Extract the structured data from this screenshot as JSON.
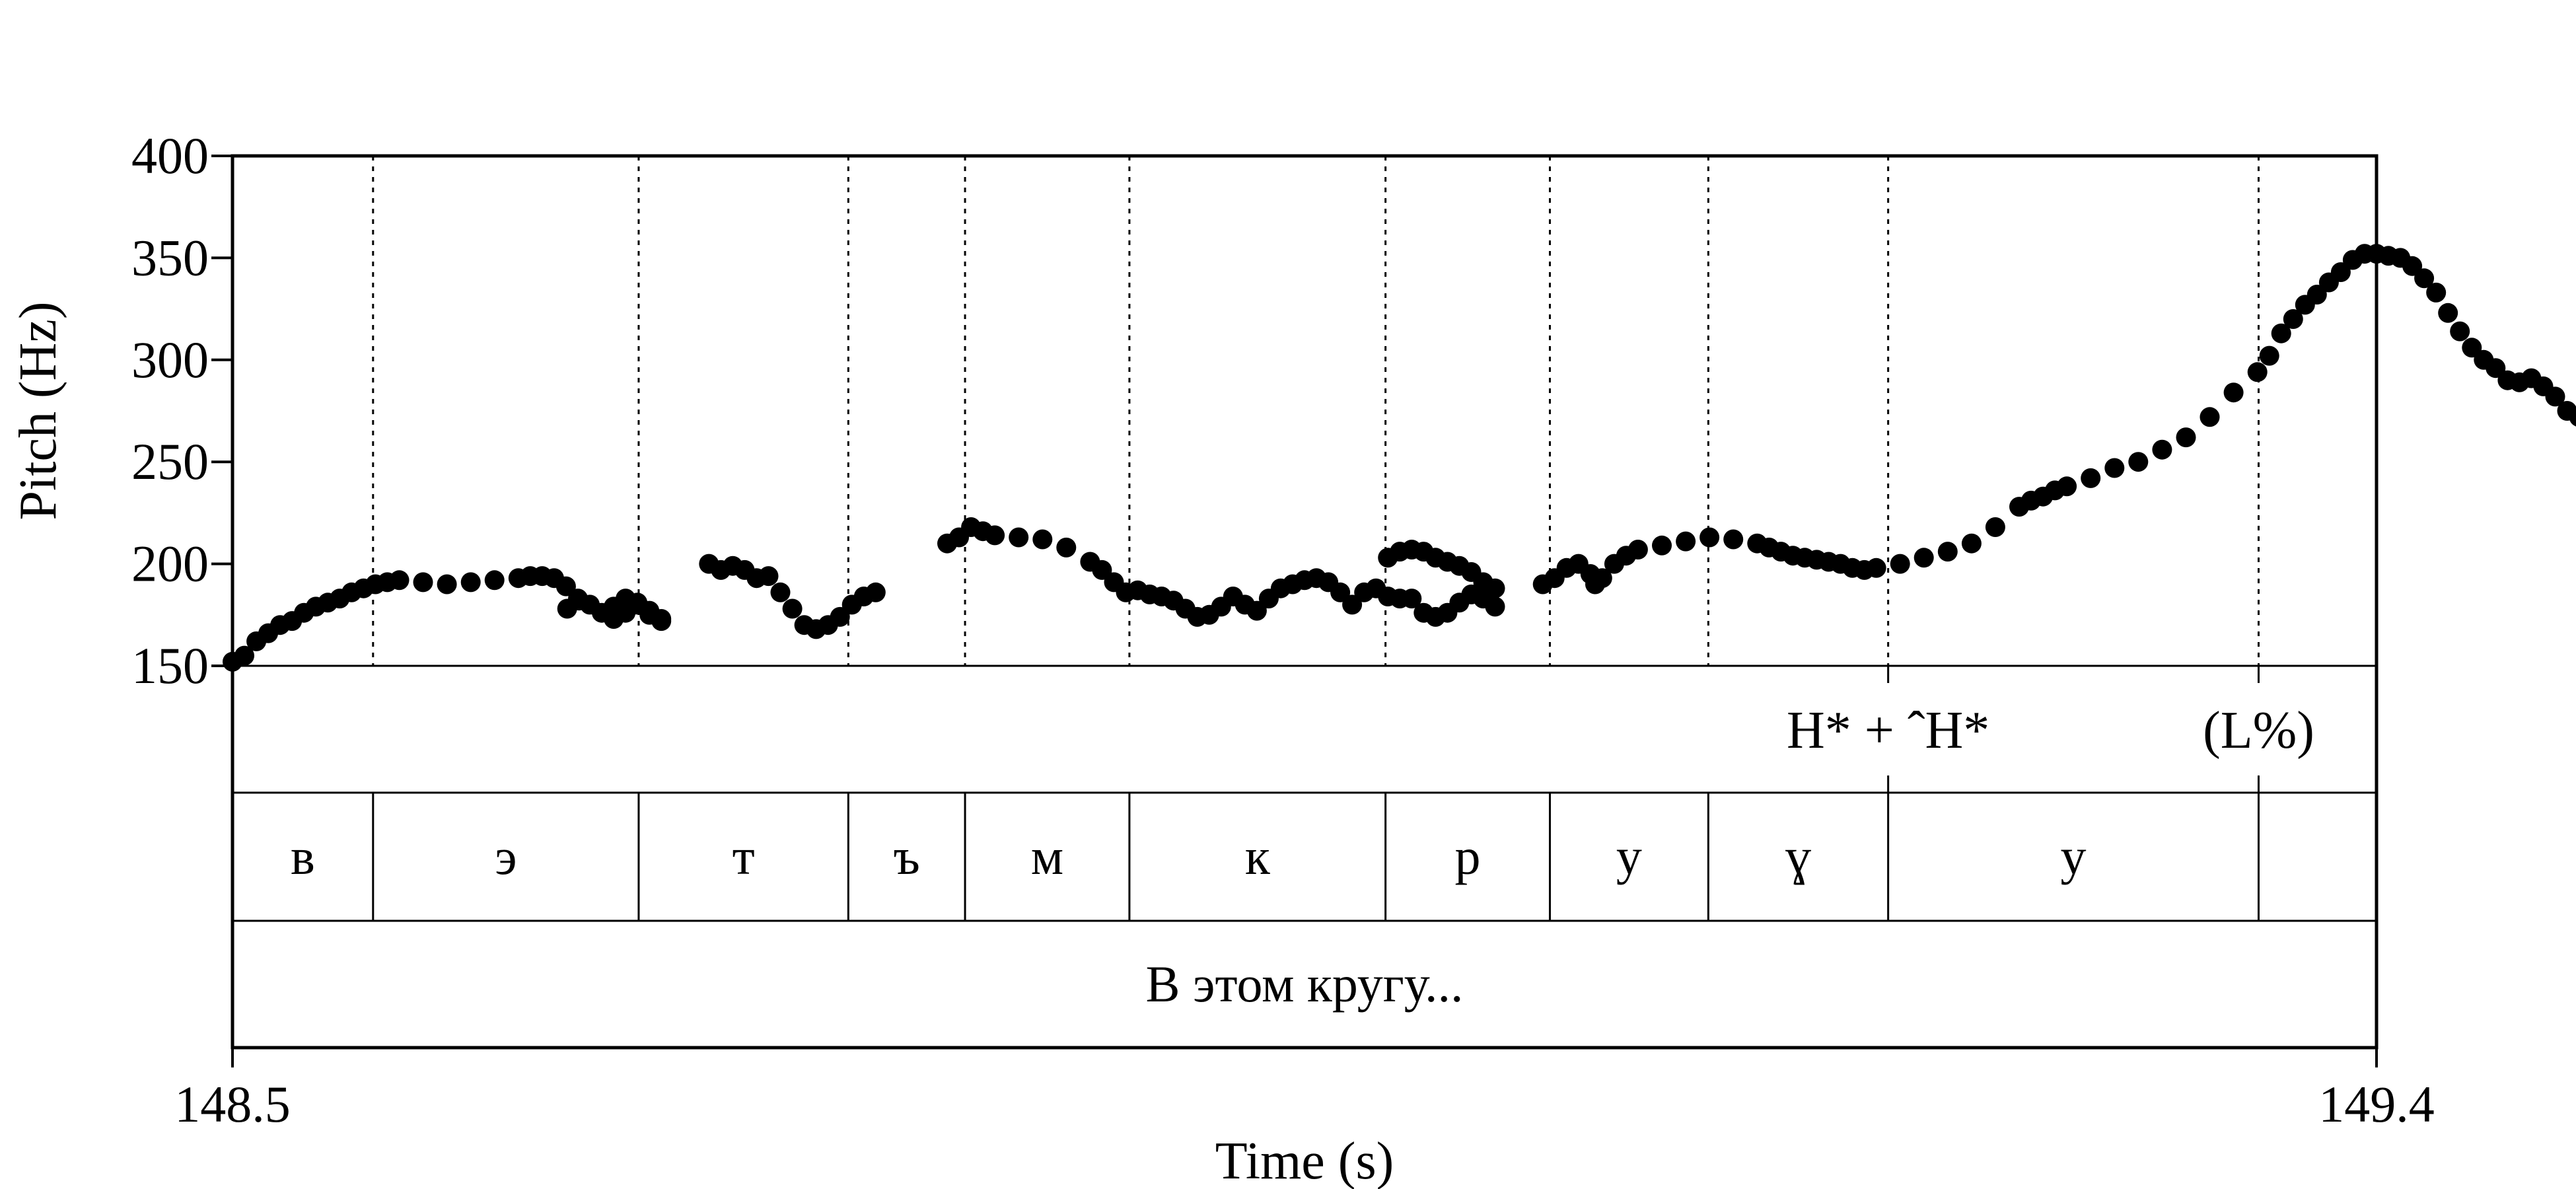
{
  "chart_data": {
    "type": "scatter",
    "xlabel": "Time (s)",
    "ylabel": "Pitch (Hz)",
    "xlim": [
      148.5,
      149.4
    ],
    "ylim": [
      150,
      400
    ],
    "x_tick_labels": [
      "148.5",
      "149.4"
    ],
    "y_ticks": [
      150,
      200,
      250,
      300,
      350,
      400
    ],
    "y_tick_labels": [
      "150",
      "200",
      "250",
      "300",
      "350",
      "400"
    ],
    "grid": false,
    "boundaries": [
      148.559,
      148.6705,
      148.7585,
      148.8075,
      148.8765,
      148.984,
      149.053,
      149.1195,
      149.195,
      149.3505
    ],
    "tones": [
      {
        "label": "H* + ˆH*",
        "x": 149.195
      },
      {
        "label": "(L%)",
        "x": 149.3505
      }
    ],
    "segments": [
      "в",
      "э",
      "т",
      "ъ",
      "м",
      "к",
      "р",
      "у",
      "ɣ",
      "у"
    ],
    "utterance": "В этом кругу...",
    "pitch_runs": [
      [
        [
          148.5,
          152
        ],
        [
          148.505,
          155
        ],
        [
          148.51,
          162
        ],
        [
          148.515,
          166
        ],
        [
          148.52,
          170
        ],
        [
          148.525,
          172
        ],
        [
          148.53,
          176
        ],
        [
          148.535,
          179
        ],
        [
          148.54,
          181
        ],
        [
          148.545,
          183
        ],
        [
          148.55,
          186
        ],
        [
          148.555,
          188
        ],
        [
          148.56,
          190
        ],
        [
          148.565,
          191
        ],
        [
          148.57,
          192
        ],
        [
          148.58,
          191
        ],
        [
          148.59,
          190
        ],
        [
          148.6,
          191
        ],
        [
          148.61,
          192
        ],
        [
          148.62,
          193
        ],
        [
          148.625,
          194
        ],
        [
          148.63,
          194
        ],
        [
          148.635,
          193
        ],
        [
          148.64,
          189
        ],
        [
          148.645,
          183
        ],
        [
          148.65,
          180
        ],
        [
          148.655,
          176
        ],
        [
          148.66,
          173
        ],
        [
          148.665,
          176
        ],
        [
          148.67,
          181
        ],
        [
          148.675,
          177
        ],
        [
          148.68,
          173
        ]
      ],
      [
        [
          148.66,
          179
        ],
        [
          148.665,
          183
        ],
        [
          148.67,
          180
        ],
        [
          148.675,
          175
        ],
        [
          148.68,
          172
        ]
      ],
      [
        [
          148.6405,
          178
        ],
        [
          148.6455,
          182
        ]
      ],
      [
        [
          148.71,
          199
        ],
        [
          148.715,
          197
        ],
        [
          148.72,
          193
        ],
        [
          148.725,
          194
        ],
        [
          148.73,
          186
        ],
        [
          148.735,
          178
        ],
        [
          148.74,
          170
        ],
        [
          148.745,
          168
        ],
        [
          148.75,
          170
        ],
        [
          148.755,
          174
        ],
        [
          148.76,
          180
        ],
        [
          148.765,
          184
        ],
        [
          148.77,
          186
        ]
      ],
      [
        [
          148.7,
          200
        ],
        [
          148.705,
          197
        ]
      ],
      [
        [
          148.8,
          210
        ],
        [
          148.805,
          213
        ],
        [
          148.81,
          218
        ],
        [
          148.815,
          216
        ],
        [
          148.82,
          214
        ],
        [
          148.83,
          213
        ],
        [
          148.84,
          212
        ],
        [
          148.85,
          208
        ],
        [
          148.86,
          201
        ],
        [
          148.865,
          197
        ],
        [
          148.87,
          191
        ],
        [
          148.875,
          186
        ],
        [
          148.88,
          187
        ],
        [
          148.885,
          185
        ],
        [
          148.89,
          184
        ],
        [
          148.895,
          182
        ],
        [
          148.9,
          178
        ],
        [
          148.905,
          174
        ],
        [
          148.91,
          175
        ],
        [
          148.915,
          179
        ],
        [
          148.92,
          184
        ],
        [
          148.925,
          180
        ],
        [
          148.93,
          177
        ],
        [
          148.935,
          183
        ],
        [
          148.94,
          188
        ],
        [
          148.945,
          190
        ],
        [
          148.95,
          192
        ],
        [
          148.955,
          193
        ],
        [
          148.96,
          191
        ],
        [
          148.965,
          186
        ],
        [
          148.97,
          180
        ],
        [
          148.975,
          186
        ],
        [
          148.98,
          188
        ],
        [
          148.985,
          184
        ],
        [
          148.99,
          183
        ],
        [
          148.995,
          183
        ],
        [
          149.0,
          176
        ],
        [
          149.005,
          174
        ],
        [
          149.01,
          176
        ],
        [
          149.015,
          181
        ],
        [
          149.02,
          185
        ],
        [
          149.025,
          183
        ],
        [
          149.03,
          179
        ]
      ],
      [
        [
          148.985,
          203
        ],
        [
          148.99,
          206
        ],
        [
          148.995,
          207
        ],
        [
          149.0,
          206
        ],
        [
          149.005,
          203
        ],
        [
          149.01,
          201
        ],
        [
          149.015,
          199
        ],
        [
          149.02,
          196
        ],
        [
          149.025,
          191
        ],
        [
          149.03,
          188
        ]
      ],
      [
        [
          149.05,
          190
        ],
        [
          149.055,
          193
        ],
        [
          149.06,
          198
        ],
        [
          149.065,
          200
        ],
        [
          149.07,
          195
        ],
        [
          149.072,
          190
        ],
        [
          149.075,
          193
        ],
        [
          149.08,
          200
        ],
        [
          149.085,
          204
        ],
        [
          149.09,
          207
        ],
        [
          149.1,
          209
        ],
        [
          149.11,
          211
        ],
        [
          149.12,
          213
        ],
        [
          149.13,
          212
        ],
        [
          149.14,
          210
        ],
        [
          149.145,
          208
        ],
        [
          149.15,
          206
        ],
        [
          149.155,
          204
        ],
        [
          149.16,
          203
        ],
        [
          149.165,
          202
        ],
        [
          149.17,
          201
        ],
        [
          149.175,
          200
        ],
        [
          149.18,
          198
        ],
        [
          149.185,
          197
        ],
        [
          149.19,
          198
        ],
        [
          149.2,
          200
        ],
        [
          149.21,
          203
        ],
        [
          149.22,
          206
        ],
        [
          149.23,
          210
        ],
        [
          149.24,
          218
        ],
        [
          149.25,
          228
        ],
        [
          149.255,
          231
        ],
        [
          149.26,
          233
        ],
        [
          149.265,
          236
        ],
        [
          149.27,
          238
        ],
        [
          149.28,
          242
        ],
        [
          149.29,
          247
        ],
        [
          149.3,
          250
        ],
        [
          149.31,
          256
        ],
        [
          149.32,
          262
        ],
        [
          149.33,
          272
        ],
        [
          149.34,
          284
        ],
        [
          149.35,
          294
        ],
        [
          149.355,
          302
        ],
        [
          149.36,
          313
        ],
        [
          149.365,
          320
        ],
        [
          149.37,
          327
        ],
        [
          149.375,
          332
        ],
        [
          149.38,
          338
        ],
        [
          149.385,
          343
        ],
        [
          149.39,
          349
        ],
        [
          149.395,
          352
        ],
        [
          149.4,
          352
        ],
        [
          149.405,
          351
        ],
        [
          149.41,
          350
        ],
        [
          149.415,
          346
        ],
        [
          149.42,
          340
        ],
        [
          149.425,
          333
        ],
        [
          149.43,
          323
        ],
        [
          149.435,
          314
        ],
        [
          149.44,
          306
        ],
        [
          149.445,
          300
        ],
        [
          149.45,
          296
        ],
        [
          149.455,
          290
        ],
        [
          149.46,
          289
        ],
        [
          149.465,
          291
        ],
        [
          149.47,
          287
        ],
        [
          149.475,
          282
        ],
        [
          149.48,
          275
        ],
        [
          149.485,
          272
        ],
        [
          149.49,
          270
        ]
      ]
    ]
  }
}
